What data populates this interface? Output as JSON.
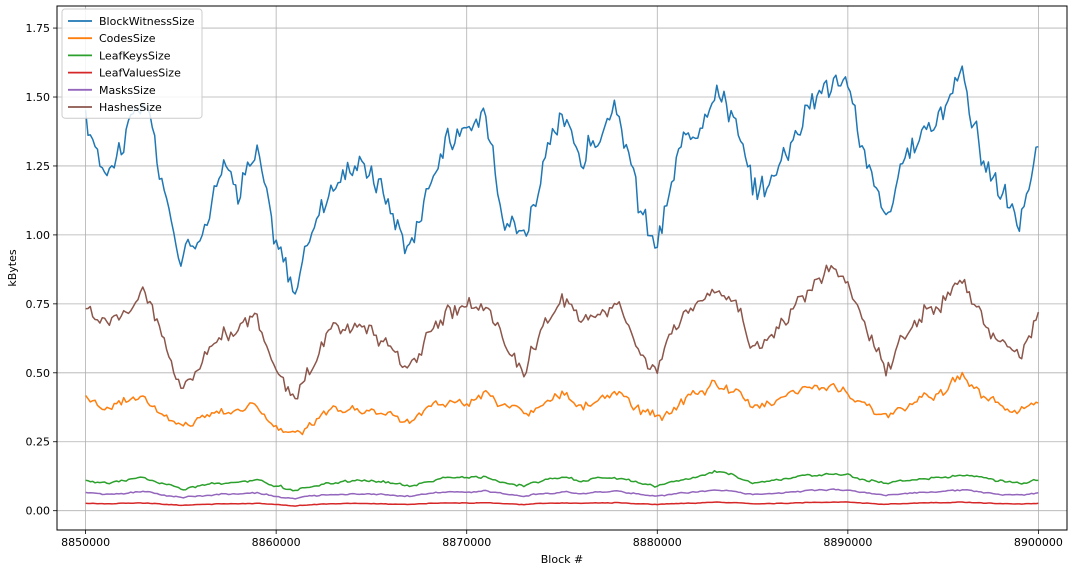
{
  "chart_data": {
    "type": "line",
    "xlabel": "Block #",
    "ylabel": "kBytes",
    "xlim": [
      8848500,
      8901500
    ],
    "ylim": [
      -0.07,
      1.83
    ],
    "xticks": [
      8850000,
      8860000,
      8870000,
      8880000,
      8890000,
      8900000
    ],
    "xtick_labels": [
      "8850000",
      "8860000",
      "8870000",
      "8880000",
      "8890000",
      "8900000"
    ],
    "yticks": [
      0.0,
      0.25,
      0.5,
      0.75,
      1.0,
      1.25,
      1.5,
      1.75
    ],
    "ytick_labels": [
      "0.00",
      "0.25",
      "0.50",
      "0.75",
      "1.00",
      "1.25",
      "1.50",
      "1.75"
    ],
    "grid": true,
    "legend_position": "top-left",
    "x": [
      8850000,
      8851000,
      8852000,
      8853000,
      8854000,
      8855000,
      8856000,
      8857000,
      8858000,
      8859000,
      8860000,
      8861000,
      8862000,
      8863000,
      8864000,
      8865000,
      8866000,
      8867000,
      8868000,
      8869000,
      8870000,
      8871000,
      8872000,
      8873000,
      8874000,
      8875000,
      8876000,
      8877000,
      8878000,
      8879000,
      8880000,
      8881000,
      8882000,
      8883000,
      8884000,
      8885000,
      8886000,
      8887000,
      8888000,
      8889000,
      8890000,
      8891000,
      8892000,
      8893000,
      8894000,
      8895000,
      8896000,
      8897000,
      8898000,
      8899000,
      8900000
    ],
    "series": [
      {
        "name": "BlockWitnessSize",
        "color": "#1f77b4",
        "values": [
          1.4,
          1.25,
          1.35,
          1.5,
          1.2,
          0.9,
          1.0,
          1.25,
          1.2,
          1.3,
          0.95,
          0.8,
          1.05,
          1.2,
          1.25,
          1.25,
          1.1,
          0.95,
          1.2,
          1.35,
          1.35,
          1.45,
          1.1,
          1.0,
          1.25,
          1.4,
          1.3,
          1.35,
          1.45,
          1.1,
          0.95,
          1.25,
          1.4,
          1.55,
          1.45,
          1.15,
          1.2,
          1.35,
          1.5,
          1.55,
          1.55,
          1.25,
          1.05,
          1.25,
          1.4,
          1.45,
          1.6,
          1.3,
          1.15,
          1.05,
          1.32
        ]
      },
      {
        "name": "CodesSize",
        "color": "#ff7f0e",
        "values": [
          0.42,
          0.37,
          0.4,
          0.42,
          0.35,
          0.3,
          0.34,
          0.36,
          0.37,
          0.38,
          0.3,
          0.27,
          0.32,
          0.36,
          0.37,
          0.36,
          0.35,
          0.32,
          0.38,
          0.4,
          0.39,
          0.42,
          0.38,
          0.35,
          0.38,
          0.42,
          0.38,
          0.4,
          0.42,
          0.37,
          0.33,
          0.38,
          0.42,
          0.46,
          0.43,
          0.38,
          0.4,
          0.43,
          0.44,
          0.45,
          0.43,
          0.38,
          0.33,
          0.38,
          0.42,
          0.43,
          0.5,
          0.42,
          0.38,
          0.36,
          0.39
        ]
      },
      {
        "name": "LeafKeysSize",
        "color": "#2ca02c",
        "values": [
          0.11,
          0.1,
          0.11,
          0.12,
          0.1,
          0.08,
          0.09,
          0.1,
          0.1,
          0.11,
          0.09,
          0.07,
          0.09,
          0.1,
          0.11,
          0.11,
          0.1,
          0.09,
          0.11,
          0.12,
          0.12,
          0.12,
          0.1,
          0.09,
          0.11,
          0.12,
          0.11,
          0.12,
          0.12,
          0.1,
          0.09,
          0.11,
          0.12,
          0.14,
          0.13,
          0.1,
          0.11,
          0.12,
          0.13,
          0.13,
          0.13,
          0.11,
          0.1,
          0.11,
          0.12,
          0.12,
          0.13,
          0.12,
          0.11,
          0.1,
          0.11
        ]
      },
      {
        "name": "LeafValuesSize",
        "color": "#d62728",
        "values": [
          0.027,
          0.025,
          0.027,
          0.029,
          0.024,
          0.02,
          0.022,
          0.025,
          0.025,
          0.027,
          0.022,
          0.018,
          0.022,
          0.025,
          0.026,
          0.026,
          0.024,
          0.022,
          0.026,
          0.028,
          0.028,
          0.029,
          0.025,
          0.022,
          0.026,
          0.028,
          0.027,
          0.028,
          0.029,
          0.025,
          0.022,
          0.026,
          0.028,
          0.031,
          0.03,
          0.025,
          0.026,
          0.028,
          0.03,
          0.031,
          0.031,
          0.027,
          0.023,
          0.026,
          0.028,
          0.029,
          0.031,
          0.028,
          0.026,
          0.024,
          0.027
        ]
      },
      {
        "name": "MasksSize",
        "color": "#9467bd",
        "values": [
          0.065,
          0.06,
          0.064,
          0.07,
          0.058,
          0.048,
          0.053,
          0.06,
          0.06,
          0.064,
          0.052,
          0.043,
          0.053,
          0.06,
          0.062,
          0.062,
          0.058,
          0.052,
          0.062,
          0.067,
          0.067,
          0.07,
          0.06,
          0.053,
          0.062,
          0.068,
          0.064,
          0.067,
          0.07,
          0.06,
          0.052,
          0.062,
          0.068,
          0.075,
          0.071,
          0.058,
          0.062,
          0.068,
          0.073,
          0.076,
          0.076,
          0.065,
          0.056,
          0.062,
          0.068,
          0.07,
          0.076,
          0.066,
          0.06,
          0.056,
          0.065
        ]
      },
      {
        "name": "HashesSize",
        "color": "#8c564b",
        "values": [
          0.75,
          0.68,
          0.72,
          0.8,
          0.65,
          0.45,
          0.52,
          0.65,
          0.65,
          0.7,
          0.52,
          0.42,
          0.55,
          0.65,
          0.66,
          0.66,
          0.6,
          0.5,
          0.65,
          0.72,
          0.72,
          0.76,
          0.6,
          0.52,
          0.66,
          0.75,
          0.7,
          0.72,
          0.76,
          0.6,
          0.5,
          0.66,
          0.75,
          0.82,
          0.76,
          0.6,
          0.64,
          0.72,
          0.8,
          0.88,
          0.82,
          0.65,
          0.52,
          0.64,
          0.74,
          0.76,
          0.85,
          0.7,
          0.6,
          0.55,
          0.72
        ]
      }
    ]
  }
}
